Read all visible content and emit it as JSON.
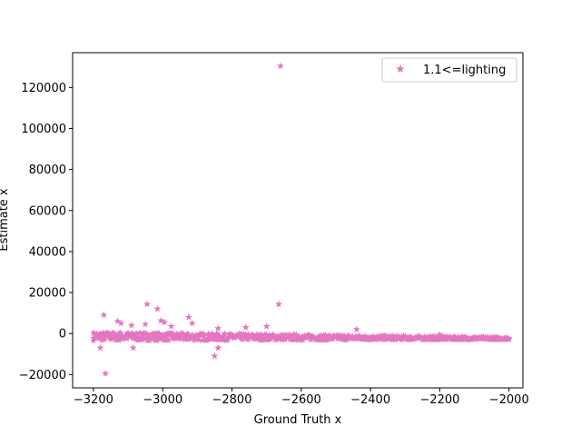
{
  "chart_data": {
    "type": "scatter",
    "xlabel": "Ground Truth x",
    "ylabel": "Estimate x",
    "xlim": [
      -3260,
      -1960
    ],
    "ylim": [
      -26500,
      137000
    ],
    "xticks": [
      -3200,
      -3000,
      -2800,
      -2600,
      -2400,
      -2200,
      -2000
    ],
    "xtick_labels": [
      "−3200",
      "−3000",
      "−2800",
      "−2600",
      "−2400",
      "−2200",
      "−2000"
    ],
    "yticks": [
      -20000,
      0,
      20000,
      40000,
      60000,
      80000,
      100000,
      120000
    ],
    "ytick_labels": [
      "−20000",
      "0",
      "20000",
      "40000",
      "60000",
      "80000",
      "100000",
      "120000"
    ],
    "grid": false,
    "legend_position": "upper right",
    "marker": "star",
    "colors": {
      "series": "#e377c2",
      "axes": "#000000",
      "background": "#ffffff"
    },
    "series": [
      {
        "name": "1.1<=lighting",
        "dense_band": {
          "x_range": [
            -3200,
            -2000
          ],
          "y_at_start": [
            -3500,
            800
          ],
          "y_at_end": [
            -3000,
            -1800
          ]
        },
        "points": [
          {
            "x": -2660,
            "y": 130500
          },
          {
            "x": -2665,
            "y": 14300
          },
          {
            "x": -3045,
            "y": 14300
          },
          {
            "x": -3015,
            "y": 12000
          },
          {
            "x": -3170,
            "y": 9000
          },
          {
            "x": -2925,
            "y": 8000
          },
          {
            "x": -3005,
            "y": 6300
          },
          {
            "x": -3130,
            "y": 6000
          },
          {
            "x": -2995,
            "y": 5500
          },
          {
            "x": -3120,
            "y": 5000
          },
          {
            "x": -2915,
            "y": 5000
          },
          {
            "x": -3050,
            "y": 4500
          },
          {
            "x": -3090,
            "y": 4000
          },
          {
            "x": -2975,
            "y": 3500
          },
          {
            "x": -2700,
            "y": 3500
          },
          {
            "x": -2760,
            "y": 3000
          },
          {
            "x": -2840,
            "y": 2500
          },
          {
            "x": -2440,
            "y": 2000
          },
          {
            "x": -2200,
            "y": -500
          },
          {
            "x": -2850,
            "y": -11000
          },
          {
            "x": -2840,
            "y": -7000
          },
          {
            "x": -3180,
            "y": -7000
          },
          {
            "x": -3085,
            "y": -7000
          },
          {
            "x": -3165,
            "y": -19500
          }
        ]
      }
    ]
  }
}
